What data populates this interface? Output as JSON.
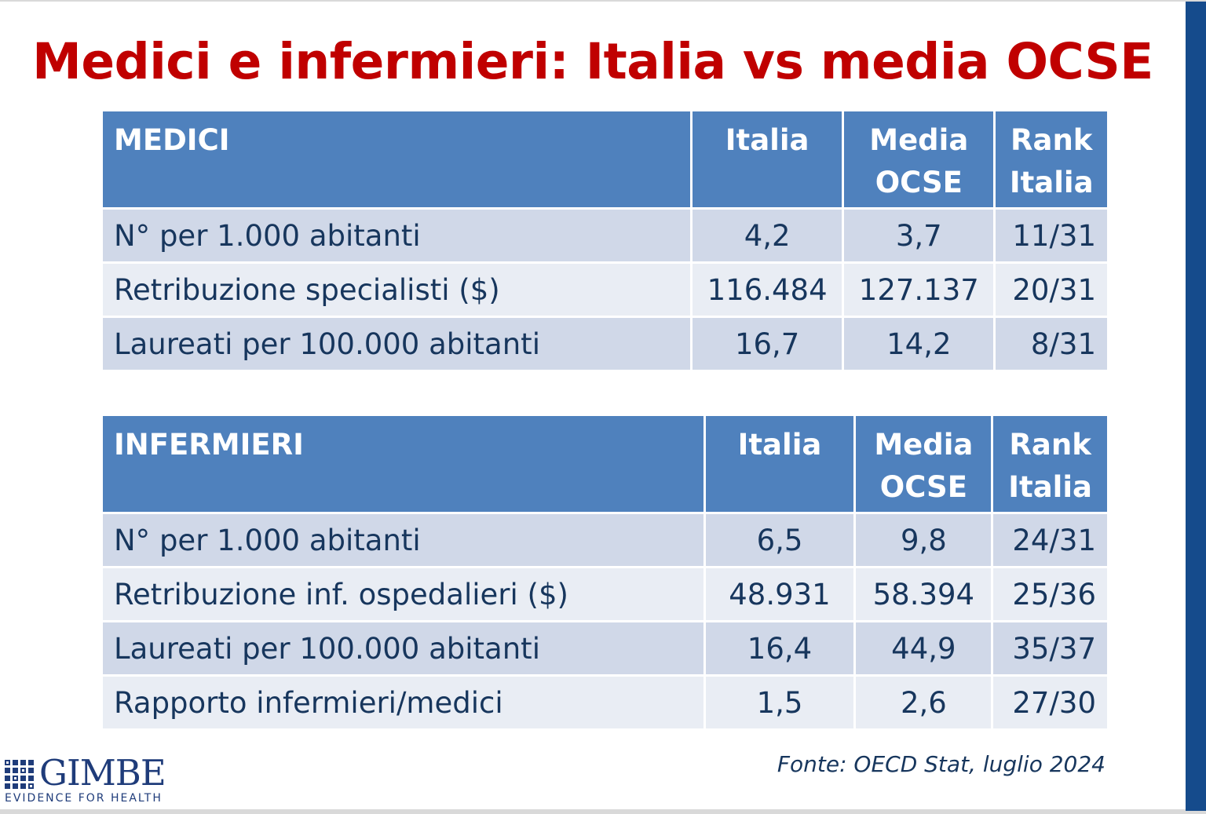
{
  "slide": {
    "title": "Medici e infermieri: Italia vs media OCSE"
  },
  "medici_table": {
    "header": {
      "label": "MEDICI",
      "italia": "Italia",
      "media_line1": "Media",
      "media_line2": "OCSE",
      "rank_line1": "Rank",
      "rank_line2": "Italia"
    },
    "rows": [
      {
        "label": "N° per 1.000 abitanti",
        "italia": "4,2",
        "media": "3,7",
        "rank": "11/31"
      },
      {
        "label": "Retribuzione specialisti ($)",
        "italia": "116.484",
        "media": "127.137",
        "rank": "20/31"
      },
      {
        "label": "Laureati per 100.000 abitanti",
        "italia": "16,7",
        "media": "14,2",
        "rank": "8/31"
      }
    ]
  },
  "infermieri_table": {
    "header": {
      "label": "INFERMIERI",
      "italia": "Italia",
      "media_line1": "Media",
      "media_line2": "OCSE",
      "rank_line1": "Rank",
      "rank_line2": "Italia"
    },
    "rows": [
      {
        "label": "N° per 1.000 abitanti",
        "italia": "6,5",
        "media": "9,8",
        "rank": "24/31"
      },
      {
        "label": "Retribuzione inf. ospedalieri ($)",
        "italia": "48.931",
        "media": "58.394",
        "rank": "25/36"
      },
      {
        "label": "Laureati per 100.000 abitanti",
        "italia": "16,4",
        "media": "44,9",
        "rank": "35/37"
      },
      {
        "label": "Rapporto infermieri/medici",
        "italia": "1,5",
        "media": "2,6",
        "rank": "27/30"
      }
    ]
  },
  "source": "Fonte: OECD Stat, luglio 2024",
  "logo": {
    "name": "GIMBE",
    "tagline": "EVIDENCE FOR HEALTH",
    "icon": "grid-logo-icon"
  },
  "colors": {
    "title": "#c00000",
    "header_bg": "#4f81bd",
    "row_dark": "#d0d8e8",
    "row_light": "#e9edf4",
    "text": "#17365d",
    "side_bar": "#154b8c"
  }
}
